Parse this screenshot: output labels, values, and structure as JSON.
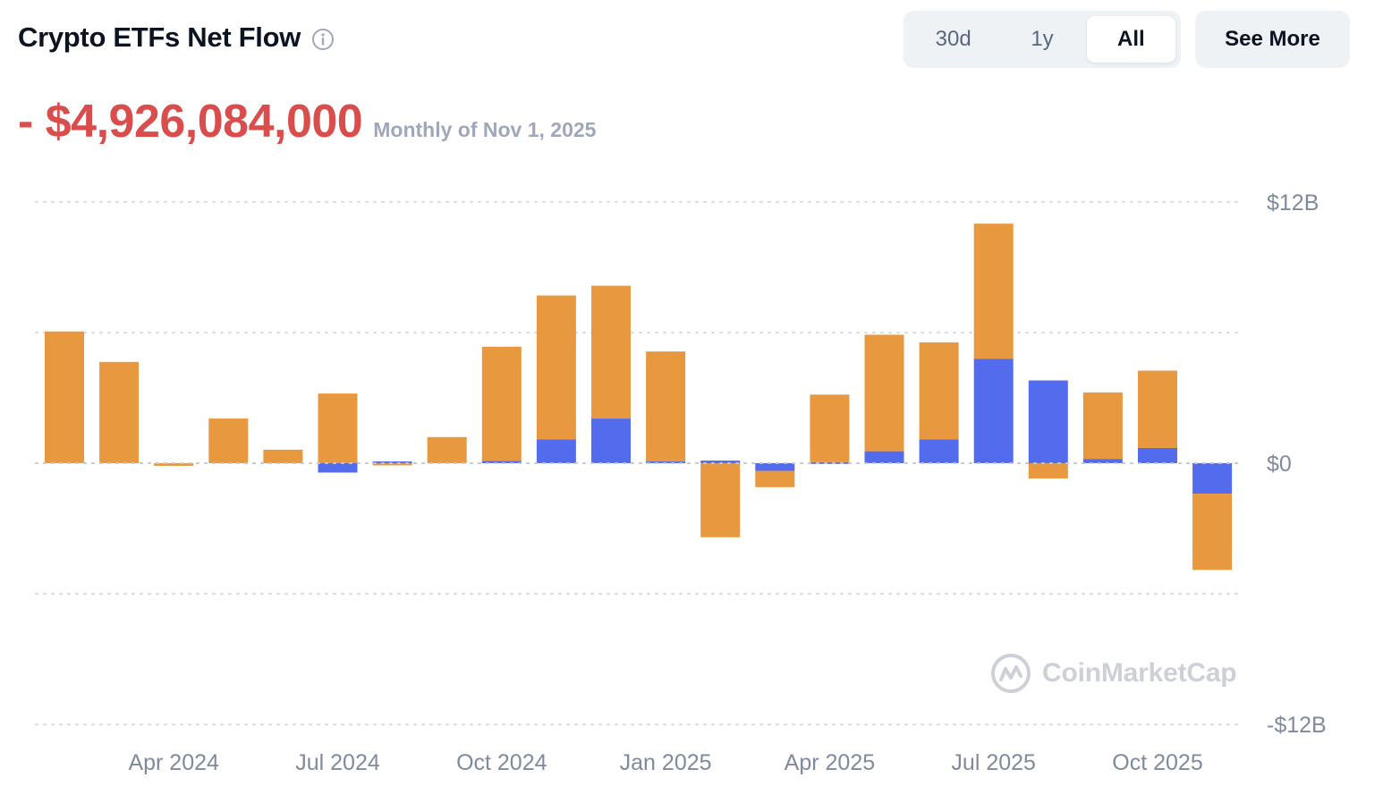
{
  "header": {
    "title": "Crypto ETFs Net Flow",
    "info_icon": "info-circle-icon"
  },
  "range_selector": {
    "options": [
      "30d",
      "1y",
      "All"
    ],
    "selected": "All"
  },
  "see_more_label": "See More",
  "headline": {
    "value": "- $4,926,084,000",
    "note": "Monthly of Nov 1, 2025",
    "color": "#d94d4d"
  },
  "watermark": {
    "text": "CoinMarketCap",
    "icon": "coinmarketcap-logo-icon"
  },
  "colors": {
    "bitcoin": "#e8983e",
    "ethereum": "#536ced",
    "grid": "#d5d9e0",
    "axis_text": "#808a9d"
  },
  "chart_data": {
    "type": "bar",
    "stacked": true,
    "categories": [
      "2024-02",
      "2024-03",
      "2024-04",
      "2024-05",
      "2024-06",
      "2024-07",
      "2024-08",
      "2024-09",
      "2024-10",
      "2024-11",
      "2024-12",
      "2025-01",
      "2025-02",
      "2025-03",
      "2025-04",
      "2025-05",
      "2025-06",
      "2025-07",
      "2025-08",
      "2025-09",
      "2025-10",
      "2025-11"
    ],
    "series": [
      {
        "key": "eth",
        "color": "#536ced",
        "values": [
          0,
          0,
          0,
          0,
          0,
          -0.43,
          0.08,
          0,
          0.1,
          1.1,
          2.05,
          0.08,
          0.12,
          -0.35,
          0.05,
          0.55,
          1.1,
          4.8,
          3.8,
          0.2,
          0.7,
          -1.4
        ]
      },
      {
        "key": "btc",
        "color": "#e8983e",
        "values": [
          6.05,
          4.65,
          -0.12,
          2.05,
          0.62,
          3.2,
          -0.1,
          1.2,
          5.25,
          6.6,
          6.1,
          5.05,
          -3.4,
          -0.75,
          3.1,
          5.35,
          4.45,
          6.2,
          -0.7,
          3.05,
          3.55,
          -3.5
        ]
      }
    ],
    "ylim": [
      -12,
      12
    ],
    "yticks": [
      {
        "value": 12,
        "label": "$12B"
      },
      {
        "value": 6,
        "label": ""
      },
      {
        "value": 0,
        "label": "$0"
      },
      {
        "value": -6,
        "label": ""
      },
      {
        "value": -12,
        "label": "-$12B"
      }
    ],
    "xticks": [
      {
        "index": 2,
        "label": "Apr 2024"
      },
      {
        "index": 5,
        "label": "Jul 2024"
      },
      {
        "index": 8,
        "label": "Oct 2024"
      },
      {
        "index": 11,
        "label": "Jan 2025"
      },
      {
        "index": 14,
        "label": "Apr 2025"
      },
      {
        "index": 17,
        "label": "Jul 2025"
      },
      {
        "index": 20,
        "label": "Oct 2025"
      }
    ],
    "grid": true,
    "legend": "none"
  }
}
